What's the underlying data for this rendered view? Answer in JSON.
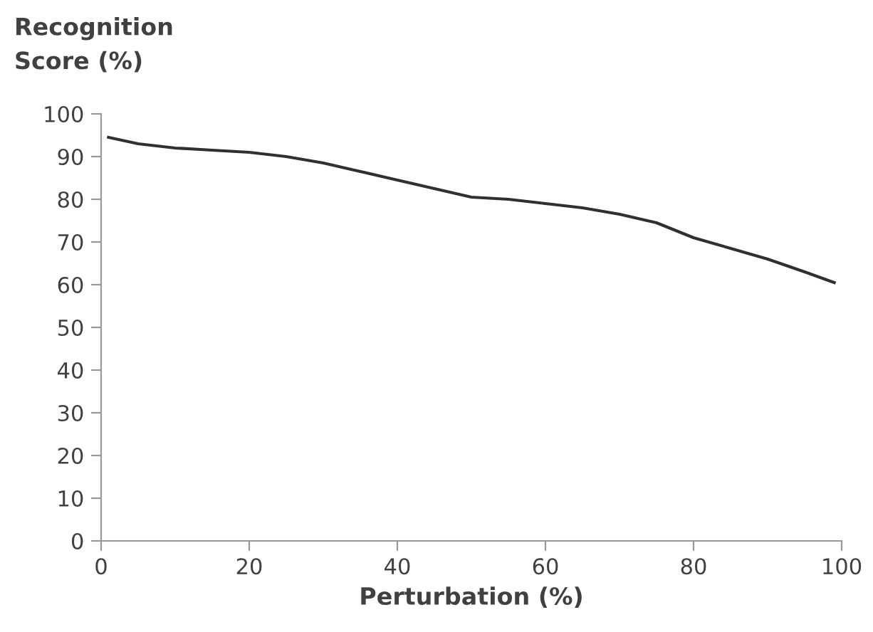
{
  "chart_data": {
    "type": "line",
    "xlabel": "Perturbation (%)",
    "ylabel": "Recognition\nScore (%)",
    "series": [
      {
        "color": "#303030",
        "x": [
          1,
          5,
          10,
          15,
          20,
          25,
          30,
          35,
          40,
          45,
          50,
          55,
          60,
          65,
          70,
          75,
          80,
          85,
          90,
          95,
          99
        ],
        "values": [
          94.5,
          93,
          92,
          91.5,
          91,
          90,
          88.5,
          86.5,
          84.5,
          82.5,
          80.5,
          80,
          79,
          78,
          76.5,
          74.5,
          71,
          68.5,
          66,
          63,
          60.5
        ]
      }
    ],
    "xlim": [
      0,
      100
    ],
    "xticks": [
      0,
      20,
      40,
      60,
      80,
      100
    ],
    "ylim": [
      0,
      100
    ],
    "yticks": [
      0,
      10,
      20,
      30,
      40,
      50,
      60,
      70,
      80,
      90,
      100
    ],
    "grid": false,
    "legend": false,
    "marker": "none",
    "line_style": "solid"
  }
}
